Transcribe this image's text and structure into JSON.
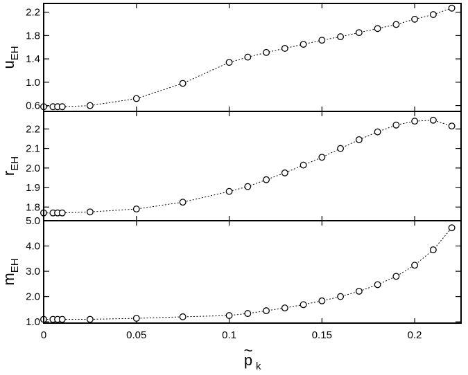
{
  "chart_data": {
    "type": "line",
    "x_axis": {
      "label_main": "p",
      "label_accent": "~",
      "label_sub": "k",
      "range": [
        0,
        0.225
      ],
      "ticks": [
        0,
        0.05,
        0.1,
        0.15,
        0.2
      ],
      "tick_labels": [
        "0",
        "0.05",
        "0.1",
        "0.15",
        "0.2"
      ]
    },
    "panels": [
      {
        "id": "u",
        "ylabel_main": "u",
        "ylabel_sub": "EH",
        "ylim": [
          0.5,
          2.35
        ],
        "yticks": [
          0.6,
          1.0,
          1.4,
          1.8,
          2.2
        ],
        "ytick_labels": [
          "0.6",
          "1.0",
          "1.4",
          "1.8",
          "2.2"
        ],
        "x": [
          0,
          0.005,
          0.0075,
          0.01,
          0.025,
          0.05,
          0.075,
          0.1,
          0.11,
          0.12,
          0.13,
          0.14,
          0.15,
          0.16,
          0.17,
          0.18,
          0.19,
          0.2,
          0.21,
          0.22
        ],
        "y": [
          0.58,
          0.58,
          0.58,
          0.58,
          0.6,
          0.72,
          0.98,
          1.34,
          1.43,
          1.51,
          1.58,
          1.65,
          1.72,
          1.78,
          1.85,
          1.92,
          1.99,
          2.08,
          2.16,
          2.27
        ]
      },
      {
        "id": "r",
        "ylabel_main": "r",
        "ylabel_sub": "EH",
        "ylim": [
          1.73,
          2.29
        ],
        "yticks": [
          1.8,
          1.9,
          2.0,
          2.1,
          2.2
        ],
        "ytick_labels": [
          "1.8",
          "1.9",
          "2.0",
          "2.1",
          "2.2"
        ],
        "x": [
          0,
          0.005,
          0.0075,
          0.01,
          0.025,
          0.05,
          0.075,
          0.1,
          0.11,
          0.12,
          0.13,
          0.14,
          0.15,
          0.16,
          0.17,
          0.18,
          0.19,
          0.2,
          0.21,
          0.22
        ],
        "y": [
          1.77,
          1.77,
          1.77,
          1.77,
          1.775,
          1.79,
          1.825,
          1.88,
          1.905,
          1.94,
          1.975,
          2.015,
          2.055,
          2.1,
          2.145,
          2.185,
          2.22,
          2.24,
          2.245,
          2.215
        ]
      },
      {
        "id": "m",
        "ylabel_main": "m",
        "ylabel_sub": "EH",
        "ylim": [
          0.95,
          5.0
        ],
        "yticks": [
          1.0,
          2.0,
          3.0,
          4.0,
          5.0
        ],
        "ytick_labels": [
          "1.0",
          "2.0",
          "3.0",
          "4.0",
          "5.0"
        ],
        "x": [
          0,
          0.005,
          0.0075,
          0.01,
          0.025,
          0.05,
          0.075,
          0.1,
          0.11,
          0.12,
          0.13,
          0.14,
          0.15,
          0.16,
          0.17,
          0.18,
          0.19,
          0.2,
          0.21,
          0.22
        ],
        "y": [
          1.1,
          1.1,
          1.1,
          1.1,
          1.1,
          1.14,
          1.2,
          1.25,
          1.33,
          1.44,
          1.55,
          1.68,
          1.83,
          2.0,
          2.21,
          2.47,
          2.8,
          3.24,
          3.85,
          4.72
        ]
      }
    ],
    "marker": "open-circle",
    "line_style": "dotted",
    "grid": false,
    "legend": "none"
  }
}
